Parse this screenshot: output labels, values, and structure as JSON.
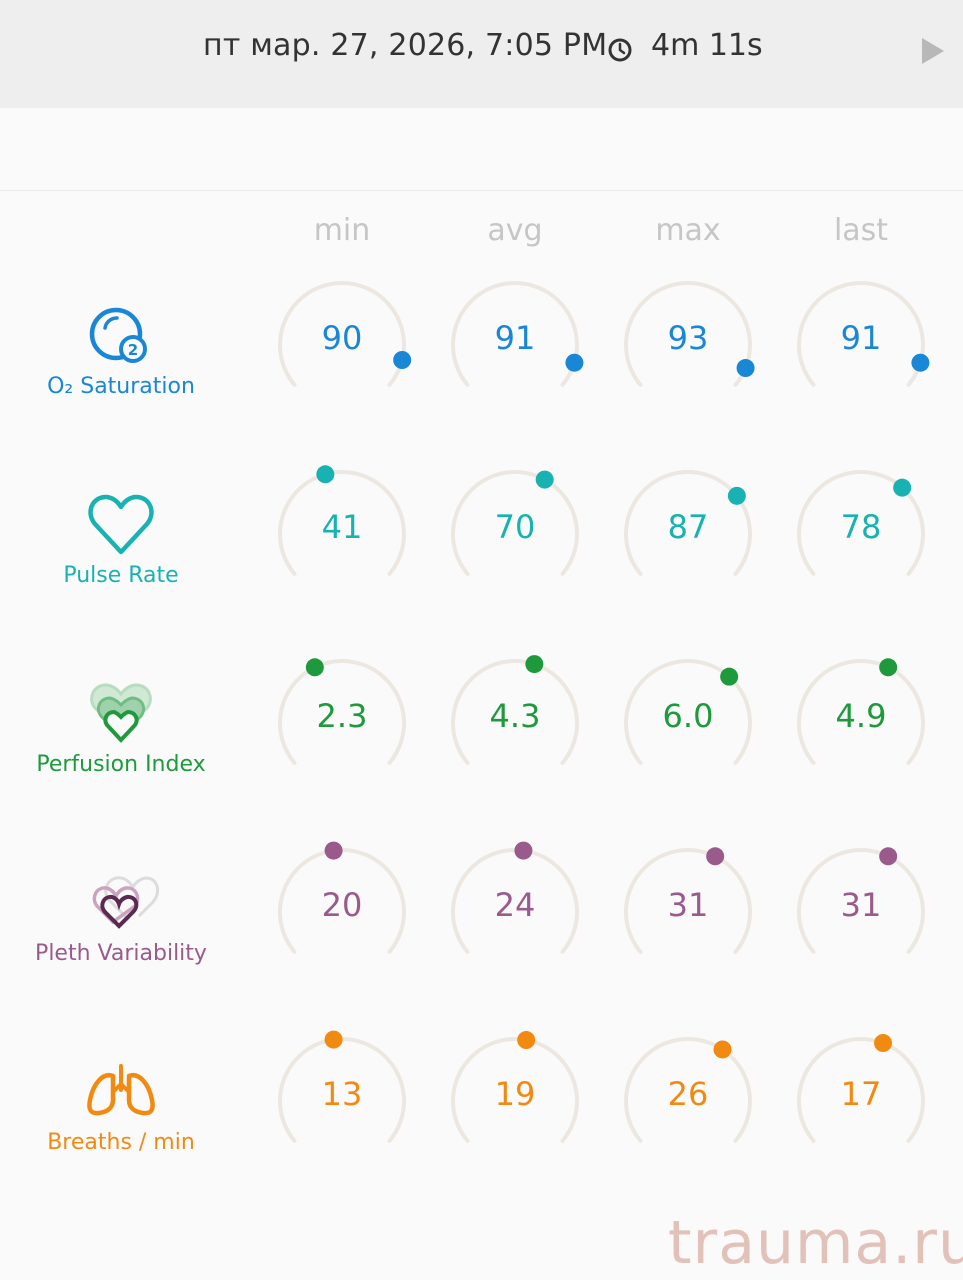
{
  "header": {
    "datetime": "пт мар. 27, 2026, 7:05 PM",
    "duration": "4m 11s",
    "clock_icon": "clock-icon",
    "play_icon": "play-icon"
  },
  "columns": [
    "min",
    "avg",
    "max",
    "last"
  ],
  "rows": [
    {
      "label": "O₂ Saturation",
      "icon": "o2-saturation-icon",
      "color": "#1a86d6",
      "values": [
        "90",
        "91",
        "93",
        "91"
      ],
      "levels": [
        0.9,
        0.91,
        0.93,
        0.91
      ]
    },
    {
      "label": "Pulse Rate",
      "icon": "heart-icon",
      "color": "#19b2b2",
      "values": [
        "41",
        "70",
        "87",
        "78"
      ],
      "levels": [
        0.44,
        0.61,
        0.7,
        0.66
      ]
    },
    {
      "label": "Perfusion Index",
      "icon": "perfusion-hearts-icon",
      "color": "#1e9a3c",
      "values": [
        "2.3",
        "4.3",
        "6.0",
        "4.9"
      ],
      "levels": [
        0.4,
        0.57,
        0.66,
        0.6
      ]
    },
    {
      "label": "Pleth Variability",
      "icon": "pleth-hearts-icon",
      "color": "#9a5a8c",
      "values": [
        "20",
        "24",
        "31",
        "31"
      ],
      "levels": [
        0.47,
        0.53,
        0.6,
        0.6
      ]
    },
    {
      "label": "Breaths / min",
      "icon": "lungs-icon",
      "color": "#f28a12",
      "values": [
        "13",
        "19",
        "26",
        "17"
      ],
      "levels": [
        0.47,
        0.54,
        0.63,
        0.58
      ]
    }
  ],
  "watermark": "trauma.ru"
}
